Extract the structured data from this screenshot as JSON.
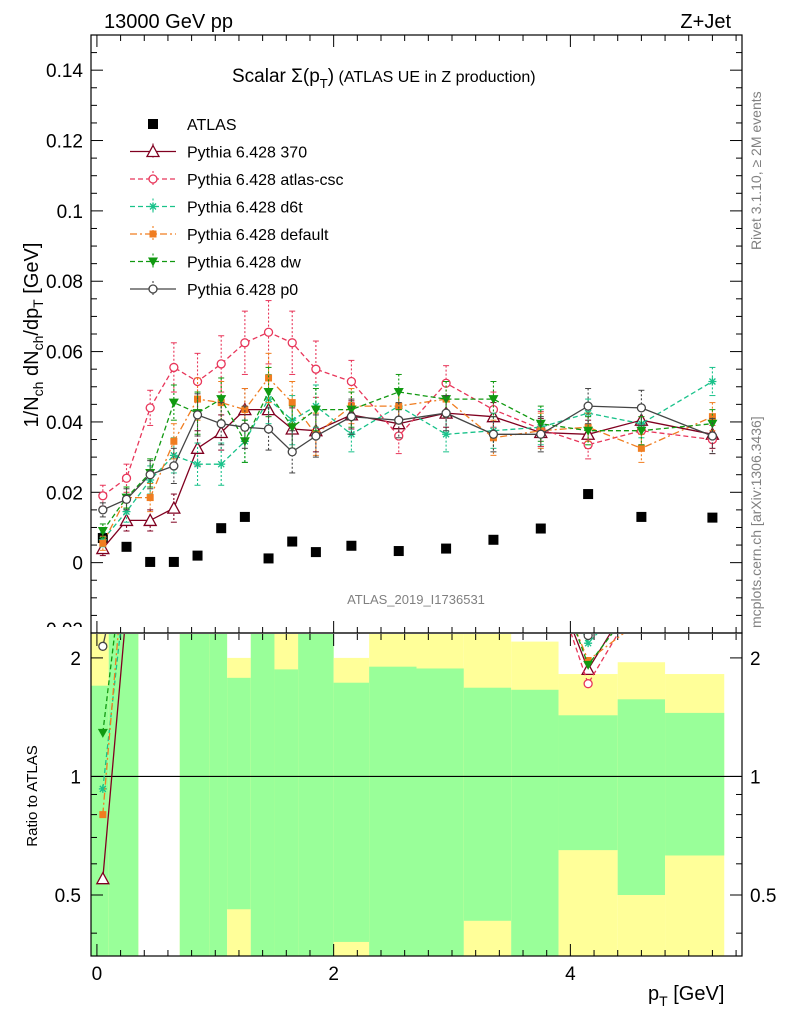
{
  "header": {
    "left": "13000 GeV pp",
    "right": "Z+Jet"
  },
  "side_labels": {
    "rivet": "Rivet 3.1.10, ≥ 2M events",
    "mcplots": "mcplots.cern.ch [arXiv:1306.3436]"
  },
  "watermark": "ATLAS_2019_I1736531",
  "colors": {
    "ATLAS": "#000000",
    "370": "#800020",
    "atlas_csc": "#e8365a",
    "d6t": "#19c28a",
    "default": "#f07d20",
    "dw": "#119911",
    "p0": "#444444",
    "band_yellow": "#ffff99",
    "band_green": "#99ff99"
  },
  "chart_data": [
    {
      "type": "line",
      "title": "Scalar Σ(p_T) (ATLAS UE in Z production)",
      "title_main": "Scalar ",
      "title_sigma": "Σ(p",
      "title_sub": "T",
      "title_close": ")",
      "title_rest": " (ATLAS UE in Z production)",
      "ylabel": "1/N_ch dN_ch/dp_T [GeV]",
      "xlabel": "p_T [GeV]",
      "ylim": [
        -0.02,
        0.15
      ],
      "xlim": [
        -0.05,
        5.45
      ],
      "yticks": [
        "0",
        "0.02",
        "0.04",
        "0.06",
        "0.08",
        "0.1",
        "0.12",
        "0.14"
      ],
      "x": [
        0.05,
        0.25,
        0.45,
        0.65,
        0.85,
        1.05,
        1.25,
        1.45,
        1.65,
        1.85,
        2.15,
        2.55,
        2.95,
        3.35,
        3.75,
        4.15,
        4.6,
        5.2
      ],
      "series": [
        {
          "name": "ATLAS",
          "key": "ATLAS",
          "marker": "square",
          "dash": "none",
          "values": [
            0.007,
            0.0045,
            0.0002,
            0.0002,
            0.002,
            0.0098,
            0.013,
            0.0012,
            0.006,
            0.003,
            0.0048,
            0.0033,
            0.004,
            0.0065,
            0.0097,
            0.0195,
            0.013,
            0.0128
          ]
        },
        {
          "name": "Pythia 6.428 370",
          "key": "370",
          "marker": "triangle-open",
          "dash": "solid",
          "values": [
            0.004,
            0.012,
            0.012,
            0.0155,
            0.0325,
            0.037,
            0.0435,
            0.0435,
            0.038,
            0.0375,
            0.042,
            0.0395,
            0.0425,
            0.0415,
            0.037,
            0.0365,
            0.0405,
            0.0365
          ]
        },
        {
          "name": "Pythia 6.428 atlas-csc",
          "key": "atlas_csc",
          "marker": "circle-open",
          "dash": "dashed",
          "values": [
            0.019,
            0.024,
            0.044,
            0.0555,
            0.0515,
            0.0565,
            0.0625,
            0.0655,
            0.0625,
            0.055,
            0.0515,
            0.036,
            0.051,
            0.0435,
            0.038,
            0.0335,
            0.0375,
            0.035
          ]
        },
        {
          "name": "Pythia 6.428 d6t",
          "key": "d6t",
          "marker": "star",
          "dash": "dashed",
          "values": [
            0.0065,
            0.0145,
            0.0235,
            0.0305,
            0.028,
            0.028,
            0.0345,
            0.0465,
            0.0405,
            0.0445,
            0.0365,
            0.0445,
            0.0365,
            0.0375,
            0.0385,
            0.0425,
            0.0395,
            0.0515
          ]
        },
        {
          "name": "Pythia 6.428 default",
          "key": "default",
          "marker": "square-filled",
          "dash": "dashdot",
          "values": [
            0.0055,
            0.0185,
            0.0185,
            0.0345,
            0.0465,
            0.0455,
            0.0435,
            0.0525,
            0.0455,
            0.0365,
            0.0445,
            0.0445,
            0.0465,
            0.0355,
            0.0375,
            0.0385,
            0.0325,
            0.0415
          ]
        },
        {
          "name": "Pythia 6.428 dw",
          "key": "dw",
          "marker": "triangle-down",
          "dash": "dashed",
          "values": [
            0.009,
            0.0185,
            0.0255,
            0.0455,
            0.0425,
            0.0465,
            0.0345,
            0.0485,
            0.0385,
            0.0435,
            0.0435,
            0.0485,
            0.0465,
            0.0465,
            0.0395,
            0.0375,
            0.0375,
            0.0395
          ]
        },
        {
          "name": "Pythia 6.428 p0",
          "key": "p0",
          "marker": "circle-open",
          "dash": "solid",
          "values": [
            0.015,
            0.018,
            0.025,
            0.0275,
            0.042,
            0.0395,
            0.0385,
            0.038,
            0.0315,
            0.036,
            0.0415,
            0.0405,
            0.0425,
            0.0365,
            0.0365,
            0.0445,
            0.044,
            0.036
          ]
        }
      ],
      "errors": {
        "370": [
          0.002,
          0.003,
          0.003,
          0.004,
          0.005,
          0.005,
          0.006,
          0.006,
          0.006,
          0.006,
          0.004,
          0.004,
          0.004,
          0.004,
          0.004,
          0.004,
          0.004,
          0.004
        ],
        "atlas_csc": [
          0.003,
          0.004,
          0.005,
          0.007,
          0.008,
          0.008,
          0.009,
          0.009,
          0.009,
          0.008,
          0.006,
          0.005,
          0.005,
          0.005,
          0.005,
          0.004,
          0.004,
          0.004
        ],
        "d6t": [
          0.002,
          0.003,
          0.004,
          0.005,
          0.006,
          0.006,
          0.006,
          0.007,
          0.007,
          0.006,
          0.005,
          0.005,
          0.005,
          0.005,
          0.005,
          0.004,
          0.004,
          0.004
        ],
        "default": [
          0.002,
          0.003,
          0.004,
          0.005,
          0.006,
          0.006,
          0.006,
          0.007,
          0.006,
          0.006,
          0.005,
          0.005,
          0.005,
          0.005,
          0.005,
          0.004,
          0.004,
          0.004
        ],
        "dw": [
          0.002,
          0.003,
          0.004,
          0.005,
          0.006,
          0.006,
          0.006,
          0.007,
          0.006,
          0.006,
          0.005,
          0.005,
          0.005,
          0.005,
          0.005,
          0.004,
          0.004,
          0.004
        ],
        "p0": [
          0.002,
          0.003,
          0.004,
          0.005,
          0.006,
          0.006,
          0.006,
          0.006,
          0.006,
          0.006,
          0.005,
          0.005,
          0.005,
          0.005,
          0.005,
          0.005,
          0.005,
          0.005
        ]
      }
    },
    {
      "type": "line",
      "ylabel": "Ratio to ATLAS",
      "ylim": [
        0.35,
        2.3
      ],
      "log_y": true,
      "yticks": [
        "0.5",
        "1",
        "2"
      ],
      "xticks": [
        "0",
        "2",
        "4"
      ],
      "reference": 1,
      "bins": [
        {
          "lo": -0.05,
          "hi": 0.1,
          "yellow": [
            0.35,
            2.3
          ],
          "green": [
            0.35,
            1.7
          ]
        },
        {
          "lo": 0.1,
          "hi": 0.35,
          "yellow": [
            0.35,
            2.3
          ],
          "green": [
            0.35,
            2.3
          ]
        },
        {
          "lo": 0.7,
          "hi": 0.95,
          "yellow": [
            0.35,
            2.3
          ],
          "green": [
            0.35,
            2.3
          ]
        },
        {
          "lo": 0.95,
          "hi": 1.1,
          "yellow": [
            0.35,
            2.3
          ],
          "green": [
            0.35,
            2.3
          ]
        },
        {
          "lo": 1.1,
          "hi": 1.3,
          "yellow": [
            0.35,
            2.0
          ],
          "green": [
            0.46,
            1.78
          ]
        },
        {
          "lo": 1.3,
          "hi": 1.5,
          "yellow": [
            0.35,
            2.3
          ],
          "green": [
            0.35,
            2.3
          ]
        },
        {
          "lo": 1.5,
          "hi": 1.7,
          "yellow": [
            0.35,
            2.3
          ],
          "green": [
            0.35,
            1.87
          ]
        },
        {
          "lo": 1.7,
          "hi": 2.0,
          "yellow": [
            0.35,
            2.3
          ],
          "green": [
            0.35,
            2.3
          ]
        },
        {
          "lo": 2.0,
          "hi": 2.3,
          "yellow": [
            0.35,
            2.0
          ],
          "green": [
            0.38,
            1.73
          ]
        },
        {
          "lo": 2.3,
          "hi": 2.7,
          "yellow": [
            0.35,
            2.3
          ],
          "green": [
            0.35,
            1.9
          ]
        },
        {
          "lo": 2.7,
          "hi": 3.1,
          "yellow": [
            0.35,
            2.3
          ],
          "green": [
            0.35,
            1.88
          ]
        },
        {
          "lo": 3.1,
          "hi": 3.5,
          "yellow": [
            0.35,
            2.3
          ],
          "green": [
            0.43,
            1.68
          ]
        },
        {
          "lo": 3.5,
          "hi": 3.9,
          "yellow": [
            0.35,
            2.2
          ],
          "green": [
            0.35,
            1.66
          ]
        },
        {
          "lo": 3.9,
          "hi": 4.4,
          "yellow": [
            0.35,
            1.82
          ],
          "green": [
            0.65,
            1.43
          ]
        },
        {
          "lo": 4.4,
          "hi": 4.8,
          "yellow": [
            0.35,
            1.95
          ],
          "green": [
            0.5,
            1.57
          ]
        },
        {
          "lo": 4.8,
          "hi": 5.3,
          "yellow": [
            0.35,
            1.82
          ],
          "green": [
            0.63,
            1.45
          ]
        }
      ],
      "curves": {
        "370": [
          0.55,
          2.67,
          60,
          77.5,
          16.3,
          3.8,
          3.3,
          36,
          6.3,
          12.5,
          8.75,
          12,
          10.6,
          6.4,
          3.8,
          1.87,
          3.1,
          2.85
        ],
        "atlas_csc": [
          2.7,
          5.3,
          220,
          277,
          25.8,
          5.8,
          4.8,
          54.6,
          10.4,
          18.3,
          10.7,
          10.9,
          12.8,
          6.7,
          3.9,
          1.72,
          2.9,
          2.7
        ],
        "d6t": [
          0.93,
          3.2,
          118,
          152,
          14,
          2.9,
          2.65,
          38.8,
          6.75,
          14.8,
          7.6,
          13.5,
          9.1,
          5.8,
          3.95,
          2.18,
          3.04,
          4.0
        ],
        "default": [
          0.8,
          4.1,
          92.5,
          172,
          23,
          4.6,
          3.35,
          43.8,
          7.6,
          12.2,
          9.3,
          13.5,
          11.6,
          5.5,
          3.9,
          1.97,
          2.5,
          3.25
        ],
        "dw": [
          1.29,
          4.1,
          127,
          227,
          21,
          4.7,
          2.65,
          40.4,
          6.4,
          14.5,
          9.1,
          14.7,
          11.6,
          7.2,
          4.1,
          1.92,
          2.88,
          3.1
        ],
        "p0": [
          2.14,
          4.0,
          125,
          137,
          21,
          4.0,
          2.96,
          31.7,
          5.25,
          12,
          8.65,
          12.3,
          10.6,
          5.6,
          3.76,
          2.28,
          3.38,
          2.81
        ]
      }
    }
  ]
}
